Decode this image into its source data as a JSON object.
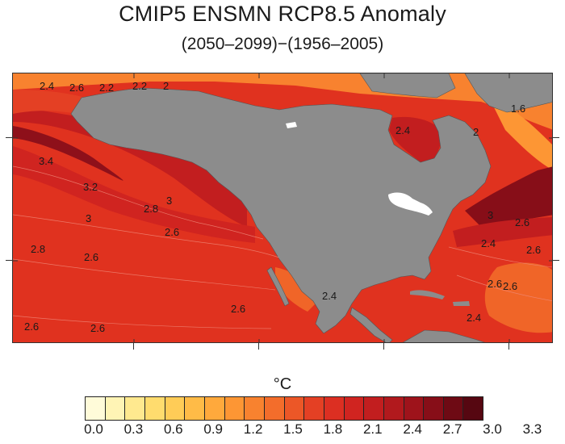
{
  "title": "CMIP5 ENSMN RCP8.5 Anomaly",
  "subtitle": "(2050–2099)−(1956–2005)",
  "colorbar": {
    "unit": "°C",
    "labels": [
      "0.0",
      "0.3",
      "0.6",
      "0.9",
      "1.2",
      "1.5",
      "1.8",
      "2.1",
      "2.4",
      "2.7",
      "3.0",
      "3.3"
    ],
    "colors": [
      "#fffbd9",
      "#fff4b5",
      "#ffe98f",
      "#ffdc6e",
      "#ffcc57",
      "#ffbb47",
      "#ffa93c",
      "#fd9634",
      "#f8822f",
      "#f36d2b",
      "#ec5727",
      "#e44024",
      "#dc2f22",
      "#d02420",
      "#c21e1f",
      "#b1191d",
      "#9e131b",
      "#870e18",
      "#6e0a14",
      "#560711"
    ]
  },
  "colors": {
    "land": "#8c8c8c",
    "ocean_base": "#e0321f",
    "ocean_warm": "#b2161d",
    "ocean_hot": "#7e0c17",
    "ocean_cool": "#f06528",
    "ocean_cooler": "#f8a032"
  },
  "contour_labels": [
    "2.4",
    "2.6",
    "2.2",
    "2.2",
    "2",
    "1.6",
    "2.4",
    "2",
    "3.4",
    "3.2",
    "3",
    "3",
    "2.8",
    "2.6",
    "2.8",
    "2.6",
    "3",
    "2.6",
    "2.4",
    "2.6",
    "2.6",
    "2.4",
    "2.6",
    "2.6",
    "2.6",
    "2.6",
    "2.4"
  ]
}
